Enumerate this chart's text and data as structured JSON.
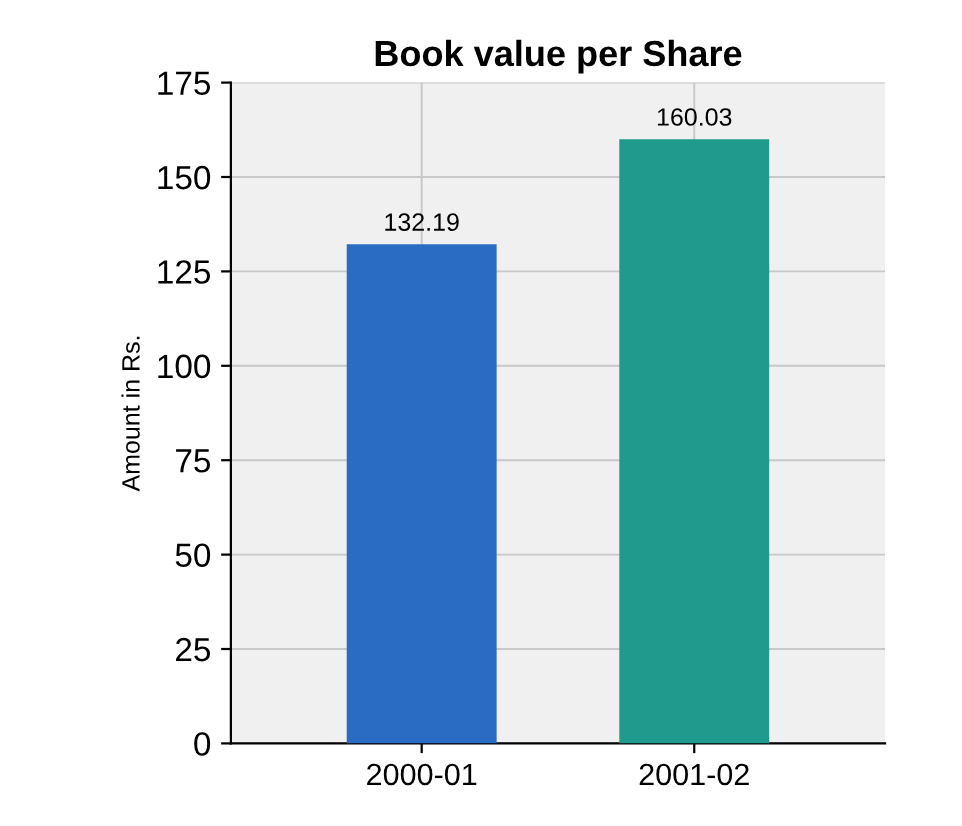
{
  "chart_data": {
    "type": "bar",
    "title": "Book value per Share",
    "ylabel": "Amount in Rs.",
    "categories": [
      "2000-01",
      "2001-02"
    ],
    "values": [
      132.19,
      160.03
    ],
    "colors": [
      "#2a6cc4",
      "#1f9a8c"
    ],
    "ylim": [
      0,
      175
    ],
    "yticks": [
      0,
      25,
      50,
      75,
      100,
      125,
      150,
      175
    ],
    "grid": true,
    "data_labels": true
  }
}
